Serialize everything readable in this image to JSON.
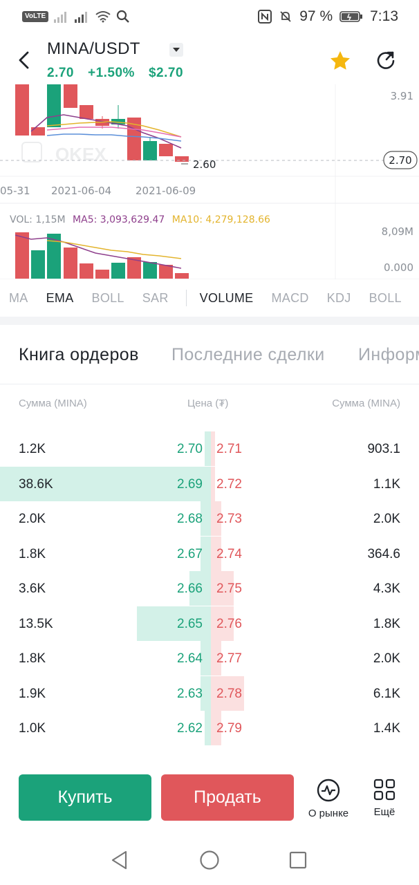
{
  "status_bar": {
    "volte": "VoLTE",
    "battery": "97 %",
    "time": "7:13"
  },
  "header": {
    "pair": "MINA/USDT",
    "last_price": "2.70",
    "change": "+1.50%",
    "fiat_price": "$2.70"
  },
  "chart": {
    "price_high_label": "3.91",
    "last_price_tag": "2.70",
    "low_marker": "2.60",
    "watermark": "OKEX",
    "dates": [
      "05-31",
      "2021-06-04",
      "2021-06-09"
    ],
    "vol_legend": {
      "vol": "VOL: 1,15M",
      "ma5": "MA5: 3,093,629.47",
      "ma10": "MA10: 4,279,128.66"
    },
    "vol_max": "8,09M",
    "vol_min": "0.000",
    "colors": {
      "up": "#1ba27a",
      "down": "#e0575b",
      "ma5": "#8e3f8c",
      "ma10": "#e3b42d"
    }
  },
  "chart_data": {
    "type": "candlestick",
    "candles": [
      {
        "date": "2021-06-01",
        "dir": "down"
      },
      {
        "date": "2021-06-02",
        "dir": "down"
      },
      {
        "date": "2021-06-03",
        "dir": "up"
      },
      {
        "date": "2021-06-04",
        "dir": "down"
      },
      {
        "date": "2021-06-05",
        "dir": "down"
      },
      {
        "date": "2021-06-06",
        "dir": "down"
      },
      {
        "date": "2021-06-07",
        "dir": "up"
      },
      {
        "date": "2021-06-08",
        "dir": "down"
      },
      {
        "date": "2021-06-09",
        "dir": "up"
      },
      {
        "date": "2021-06-10",
        "dir": "down"
      },
      {
        "date": "2021-06-11",
        "dir": "down"
      }
    ]
  },
  "indicator_tabs": [
    "MA",
    "EMA",
    "BOLL",
    "SAR",
    "VOLUME",
    "MACD",
    "KDJ",
    "BOLL"
  ],
  "orderbook_tabs": [
    "Книга ордеров",
    "Последние сделки",
    "Информация"
  ],
  "columns": {
    "bid_amount": "Сумма (MINA)",
    "price": "Цена (₮)",
    "ask_amount": "Сумма (MINA)"
  },
  "orderbook": [
    {
      "bid_amt": "1.2K",
      "bid": "2.70",
      "ask": "2.71",
      "ask_amt": "903.1",
      "bid_depth": 0.03,
      "ask_depth": 0.02
    },
    {
      "bid_amt": "38.6K",
      "bid": "2.69",
      "ask": "2.72",
      "ask_amt": "1.1K",
      "bid_depth": 1.0,
      "ask_depth": 0.02
    },
    {
      "bid_amt": "2.0K",
      "bid": "2.68",
      "ask": "2.73",
      "ask_amt": "2.0K",
      "bid_depth": 0.05,
      "ask_depth": 0.05
    },
    {
      "bid_amt": "1.8K",
      "bid": "2.67",
      "ask": "2.74",
      "ask_amt": "364.6",
      "bid_depth": 0.05,
      "ask_depth": 0.05
    },
    {
      "bid_amt": "3.6K",
      "bid": "2.66",
      "ask": "2.75",
      "ask_amt": "4.3K",
      "bid_depth": 0.1,
      "ask_depth": 0.11
    },
    {
      "bid_amt": "13.5K",
      "bid": "2.65",
      "ask": "2.76",
      "ask_amt": "1.8K",
      "bid_depth": 0.35,
      "ask_depth": 0.11
    },
    {
      "bid_amt": "1.8K",
      "bid": "2.64",
      "ask": "2.77",
      "ask_amt": "2.0K",
      "bid_depth": 0.05,
      "ask_depth": 0.05
    },
    {
      "bid_amt": "1.9K",
      "bid": "2.63",
      "ask": "2.78",
      "ask_amt": "6.1K",
      "bid_depth": 0.05,
      "ask_depth": 0.16
    },
    {
      "bid_amt": "1.0K",
      "bid": "2.62",
      "ask": "2.79",
      "ask_amt": "1.4K",
      "bid_depth": 0.03,
      "ask_depth": 0.05
    }
  ],
  "actions": {
    "buy": "Купить",
    "sell": "Продать",
    "market": "О рынке",
    "more": "Ещё"
  }
}
